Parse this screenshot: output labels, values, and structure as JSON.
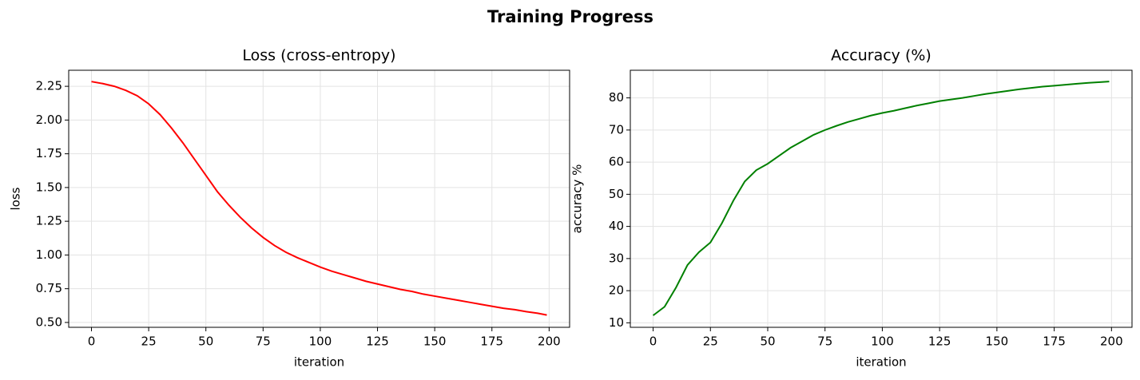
{
  "title": "Training Progress",
  "chart_data": [
    {
      "type": "line",
      "title": "Loss (cross-entropy)",
      "xlabel": "iteration",
      "ylabel": "loss",
      "color": "#ff0000",
      "grid": true,
      "x": [
        0,
        5,
        10,
        15,
        20,
        25,
        30,
        35,
        40,
        45,
        50,
        55,
        60,
        65,
        70,
        75,
        80,
        85,
        90,
        95,
        100,
        105,
        110,
        115,
        120,
        125,
        130,
        135,
        140,
        145,
        150,
        155,
        160,
        165,
        170,
        175,
        180,
        185,
        190,
        195,
        199
      ],
      "values": [
        2.285,
        2.27,
        2.25,
        2.22,
        2.18,
        2.12,
        2.04,
        1.94,
        1.83,
        1.71,
        1.59,
        1.47,
        1.37,
        1.28,
        1.2,
        1.13,
        1.07,
        1.02,
        0.98,
        0.945,
        0.91,
        0.88,
        0.855,
        0.83,
        0.805,
        0.785,
        0.765,
        0.745,
        0.73,
        0.71,
        0.695,
        0.68,
        0.665,
        0.65,
        0.635,
        0.62,
        0.605,
        0.595,
        0.58,
        0.568,
        0.555
      ],
      "xlim": [
        -9.95,
        208.95
      ],
      "xticks": [
        0,
        25,
        50,
        75,
        100,
        125,
        150,
        175,
        200
      ],
      "ylim": [
        0.464,
        2.369
      ],
      "yticks": [
        {
          "value": 0.5,
          "label": "0.50"
        },
        0.75,
        {
          "value": 1.0,
          "label": "1.00"
        },
        1.25,
        {
          "value": 1.5,
          "label": "1.50"
        },
        1.75,
        {
          "value": 2.0,
          "label": "2.00"
        },
        2.25
      ]
    },
    {
      "type": "line",
      "title": "Accuracy (%)",
      "xlabel": "iteration",
      "ylabel": "accuracy %",
      "color": "#008000",
      "grid": true,
      "x": [
        0,
        5,
        10,
        15,
        20,
        25,
        30,
        35,
        40,
        45,
        50,
        55,
        60,
        65,
        70,
        75,
        80,
        85,
        90,
        95,
        100,
        105,
        110,
        115,
        120,
        125,
        130,
        135,
        140,
        145,
        150,
        155,
        160,
        165,
        170,
        175,
        180,
        185,
        190,
        195,
        199
      ],
      "values": [
        12.3,
        15,
        21,
        28,
        32,
        35,
        41,
        48,
        54,
        57.5,
        59.5,
        62,
        64.5,
        66.5,
        68.5,
        70,
        71.3,
        72.5,
        73.5,
        74.5,
        75.3,
        76,
        76.8,
        77.6,
        78.3,
        79,
        79.5,
        80,
        80.6,
        81.2,
        81.7,
        82.2,
        82.7,
        83.1,
        83.5,
        83.8,
        84.1,
        84.4,
        84.7,
        84.9,
        85.1
      ],
      "xlim": [
        -9.95,
        208.95
      ],
      "xticks": [
        0,
        25,
        50,
        75,
        100,
        125,
        150,
        175,
        200
      ],
      "ylim": [
        8.6,
        88.6
      ],
      "yticks": [
        10,
        20,
        30,
        40,
        50,
        60,
        70,
        80
      ]
    }
  ]
}
